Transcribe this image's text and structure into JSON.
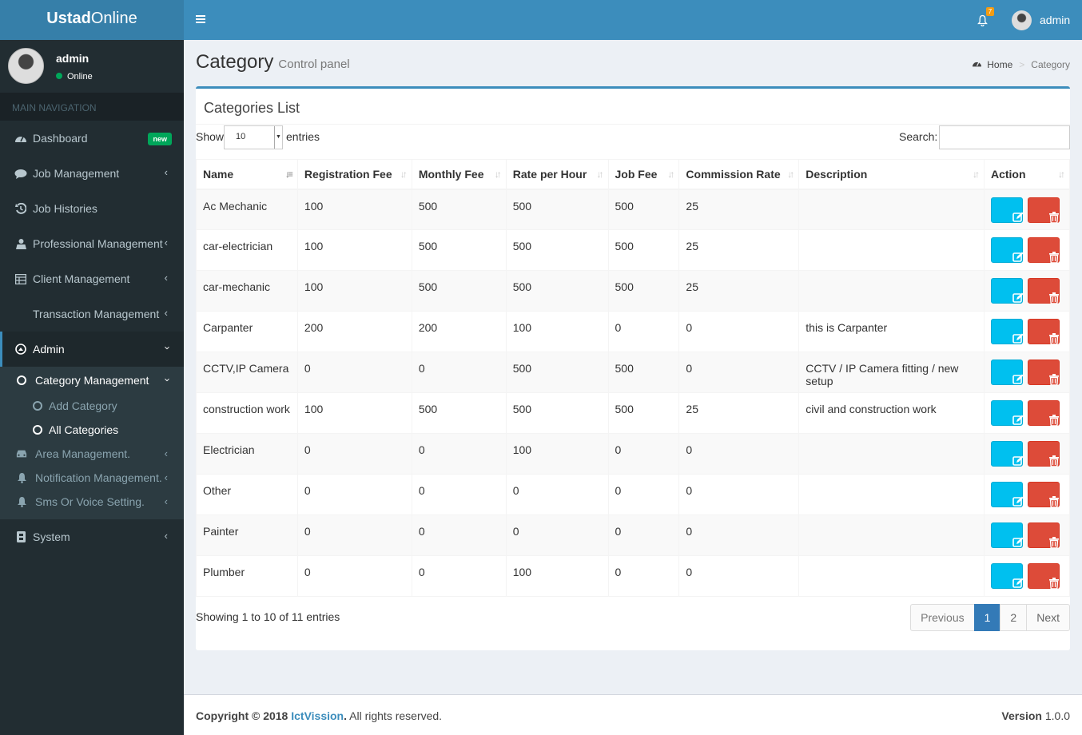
{
  "brand": {
    "bold": "Ustad",
    "light": "Online"
  },
  "user": {
    "name": "admin",
    "status": "Online"
  },
  "sidebar": {
    "header": "MAIN NAVIGATION",
    "dashboard": {
      "label": "Dashboard",
      "badge": "new"
    },
    "job_management": "Job Management",
    "job_histories": "Job Histories",
    "professional_management": "Professional Management",
    "client_management": "Client Management",
    "transaction_management": "Transaction Management",
    "admin": "Admin",
    "category_management": "Category Management",
    "add_category": "Add Category",
    "all_categories": "All Categories",
    "area_management": "Area Management.",
    "notification_management": "Notification Management.",
    "sms_voice_setting": "Sms Or Voice Setting.",
    "system": "System"
  },
  "topbar": {
    "notification_count": "7",
    "username": "admin"
  },
  "page": {
    "title": "Category",
    "subtitle": "Control panel"
  },
  "breadcrumb": {
    "home": "Home",
    "current": "Category"
  },
  "box": {
    "title": "Categories List"
  },
  "table_controls": {
    "show": "Show",
    "length": "10",
    "entries": "entries",
    "search": "Search:"
  },
  "table": {
    "columns": [
      "Name",
      "Registration Fee",
      "Monthly Fee",
      "Rate per Hour",
      "Job Fee",
      "Commission Rate",
      "Description",
      "Action"
    ],
    "rows": [
      [
        "Ac Mechanic",
        "100",
        "500",
        "500",
        "500",
        "25",
        ""
      ],
      [
        "car-electrician",
        "100",
        "500",
        "500",
        "500",
        "25",
        ""
      ],
      [
        "car-mechanic",
        "100",
        "500",
        "500",
        "500",
        "25",
        ""
      ],
      [
        "Carpanter",
        "200",
        "200",
        "100",
        "0",
        "0",
        "this is Carpanter"
      ],
      [
        "CCTV,IP Camera",
        "0",
        "0",
        "500",
        "500",
        "0",
        "CCTV / IP Camera fitting / new setup"
      ],
      [
        "construction work",
        "100",
        "500",
        "500",
        "500",
        "25",
        "civil and construction work"
      ],
      [
        "Electrician",
        "0",
        "0",
        "100",
        "0",
        "0",
        ""
      ],
      [
        "Other",
        "0",
        "0",
        "0",
        "0",
        "0",
        ""
      ],
      [
        "Painter",
        "0",
        "0",
        "0",
        "0",
        "0",
        ""
      ],
      [
        "Plumber",
        "0",
        "0",
        "100",
        "0",
        "0",
        ""
      ]
    ]
  },
  "table_info": "Showing 1 to 10 of 11 entries",
  "pagination": {
    "previous": "Previous",
    "pages": [
      "1",
      "2"
    ],
    "next": "Next"
  },
  "footer": {
    "copyright": "Copyright © 2018",
    "company": "IctVission",
    "rights": ". All rights reserved.",
    "version_label": "Version",
    "version": "1.0.0"
  },
  "colors": {
    "primary": "#3c8dbc",
    "sidebar": "#222d32",
    "edit": "#00c0ef",
    "delete": "#dd4b39",
    "success": "#00a65a"
  }
}
